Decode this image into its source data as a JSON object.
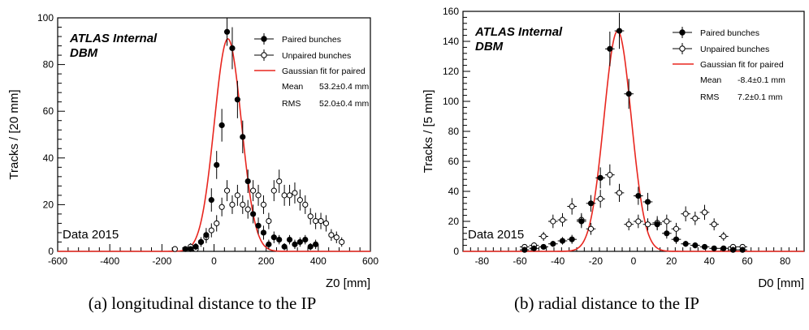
{
  "chart_data": [
    {
      "type": "scatter",
      "caption": "(a) longitudinal distance to the IP",
      "xlabel": "Z0 [mm]",
      "ylabel": "Tracks / [20 mm]",
      "xlim": [
        -600,
        600
      ],
      "ylim": [
        0,
        100
      ],
      "xticks": [
        -600,
        -400,
        -200,
        0,
        200,
        400,
        600
      ],
      "yticks": [
        0,
        20,
        40,
        60,
        80,
        100
      ],
      "experiment_label": "ATLAS Internal",
      "detector_label": "DBM",
      "data_label": "Data 2015",
      "legend": {
        "placement": "top-right",
        "entries": [
          "Paired bunches",
          "Unpaired bunches",
          "Gaussian fit for paired"
        ],
        "mean_label": "Mean",
        "mean_value": "53.2±0.4 mm",
        "rms_label": "RMS",
        "rms_value": "52.0±0.4 mm"
      },
      "fit": {
        "mean": 53.2,
        "sigma": 52.0,
        "amplitude": 91
      },
      "series": [
        {
          "name": "Paired bunches",
          "marker": "filled",
          "x": [
            -110,
            -90,
            -70,
            -50,
            -30,
            -10,
            10,
            30,
            50,
            70,
            90,
            110,
            130,
            150,
            170,
            190,
            210,
            230,
            250,
            270,
            290,
            310,
            330,
            350,
            370,
            390
          ],
          "y": [
            1,
            1,
            2,
            4,
            7,
            22,
            37,
            54,
            94,
            87,
            65,
            49,
            30,
            16,
            11,
            8,
            3,
            6,
            5,
            2,
            5,
            3,
            4,
            5,
            2,
            3
          ],
          "err": [
            1,
            1,
            1.5,
            2,
            3,
            5,
            6,
            7,
            6,
            9,
            8,
            7,
            5,
            4,
            3.5,
            3,
            2,
            2.5,
            2,
            1.5,
            2,
            2,
            2,
            2,
            1.5,
            2
          ]
        },
        {
          "name": "Unpaired bunches",
          "marker": "open",
          "x": [
            -150,
            -90,
            -70,
            -50,
            -30,
            -10,
            10,
            30,
            50,
            70,
            90,
            110,
            130,
            150,
            170,
            190,
            210,
            230,
            250,
            270,
            290,
            310,
            330,
            350,
            370,
            390,
            410,
            430,
            450,
            470,
            490
          ],
          "y": [
            1,
            2,
            1,
            4,
            6,
            9,
            12,
            19,
            26,
            20,
            24,
            20,
            18,
            26,
            24,
            20,
            13,
            26,
            30,
            24,
            24,
            25,
            22,
            20,
            15,
            13,
            13,
            12,
            7,
            6,
            4
          ],
          "err": [
            1,
            1.5,
            1,
            2,
            2.5,
            3,
            3.5,
            4,
            4.5,
            4,
            4.5,
            4,
            4,
            4.5,
            4.5,
            4,
            3.5,
            4.5,
            5,
            4.5,
            4.5,
            4.5,
            4.5,
            4,
            3.5,
            3.5,
            3.5,
            3.5,
            2.5,
            2.5,
            2
          ]
        }
      ]
    },
    {
      "type": "scatter",
      "caption": "(b) radial distance to the IP",
      "xlabel": "D0 [mm]",
      "ylabel": "Tracks / [5 mm]",
      "xlim": [
        -90,
        90
      ],
      "ylim": [
        0,
        160
      ],
      "xticks": [
        -80,
        -60,
        -40,
        -20,
        0,
        20,
        40,
        60,
        80
      ],
      "yticks": [
        0,
        20,
        40,
        60,
        80,
        100,
        120,
        140,
        160
      ],
      "experiment_label": "ATLAS Internal",
      "detector_label": "DBM",
      "data_label": "Data 2015",
      "legend": {
        "placement": "top-right",
        "entries": [
          "Paired bunches",
          "Unpaired bunches",
          "Gaussian fit for paired"
        ],
        "mean_label": "Mean",
        "mean_value": "-8.4±0.1 mm",
        "rms_label": "RMS",
        "rms_value": "7.2±0.1 mm"
      },
      "fit": {
        "mean": -8.4,
        "sigma": 7.2,
        "amplitude": 147
      },
      "series": [
        {
          "name": "Paired bunches",
          "marker": "filled",
          "x": [
            -57.5,
            -52.5,
            -47.5,
            -42.5,
            -37.5,
            -32.5,
            -27.5,
            -22.5,
            -17.5,
            -12.5,
            -7.5,
            -2.5,
            2.5,
            7.5,
            12.5,
            17.5,
            22.5,
            27.5,
            32.5,
            37.5,
            42.5,
            47.5,
            52.5,
            57.5
          ],
          "y": [
            1,
            2,
            3,
            5,
            7,
            8,
            20,
            32,
            49,
            135,
            147,
            105,
            37,
            33,
            18,
            12,
            8,
            5,
            4,
            3,
            2,
            2,
            1,
            1
          ],
          "err": [
            1,
            1.5,
            1.5,
            2,
            2.5,
            3,
            4.5,
            5.5,
            7,
            11.5,
            12,
            10,
            6,
            6,
            4,
            3.5,
            3,
            2,
            2,
            1.5,
            1.5,
            1.5,
            1,
            1
          ]
        },
        {
          "name": "Unpaired bunches",
          "marker": "open",
          "x": [
            -57.5,
            -52.5,
            -47.5,
            -42.5,
            -37.5,
            -32.5,
            -27.5,
            -22.5,
            -17.5,
            -12.5,
            -7.5,
            -2.5,
            2.5,
            7.5,
            12.5,
            17.5,
            22.5,
            27.5,
            32.5,
            37.5,
            42.5,
            47.5,
            52.5,
            57.5
          ],
          "y": [
            3,
            4,
            10,
            20,
            21,
            30,
            21,
            15,
            35,
            51,
            39,
            18,
            20,
            18,
            19,
            20,
            15,
            25,
            22,
            26,
            18,
            10,
            3,
            3
          ],
          "err": [
            1.5,
            2,
            3,
            4.5,
            4.5,
            5.5,
            4.5,
            4,
            6,
            7,
            6,
            4,
            4.5,
            4,
            4.5,
            4.5,
            4,
            5,
            4.5,
            5,
            4,
            3,
            1.5,
            1.5
          ]
        }
      ]
    }
  ]
}
